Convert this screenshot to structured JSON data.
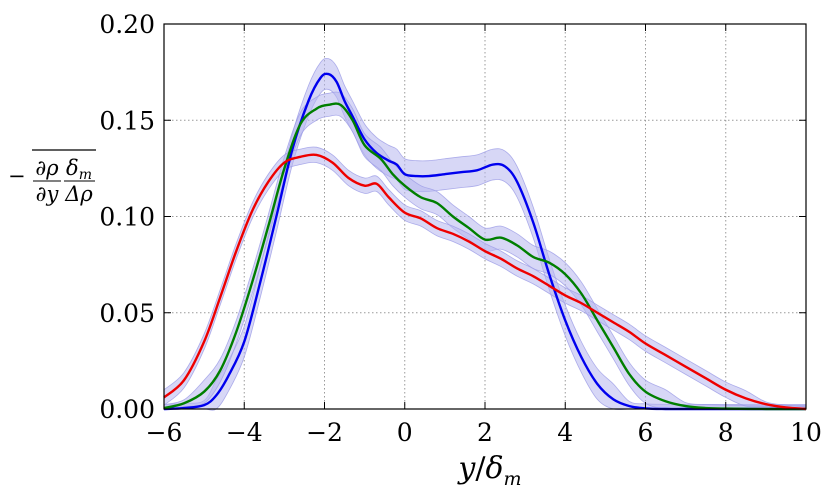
{
  "chart_data": {
    "type": "line",
    "title": "",
    "xlabel": "y/δ_m",
    "ylabel": "−∂ρ/∂y · δ_m/Δρ (overlined)",
    "xlabel_parts": {
      "var": "y",
      "slash": "/",
      "delta": "δ",
      "sub": "m"
    },
    "ylabel_parts": {
      "minus": "−",
      "frac1_num": "∂ρ",
      "frac1_den": "∂y",
      "frac2_num": "δ",
      "frac2_num_sub": "m",
      "frac2_den": "Δρ"
    },
    "xlim": [
      -6,
      10
    ],
    "ylim": [
      0.0,
      0.2
    ],
    "xticks": [
      -6,
      -4,
      -2,
      0,
      2,
      4,
      6,
      8,
      10
    ],
    "xtick_labels": [
      "−6",
      "−4",
      "−2",
      "0",
      "2",
      "4",
      "6",
      "8",
      "10"
    ],
    "yticks": [
      0.0,
      0.05,
      0.1,
      0.15,
      0.2
    ],
    "ytick_labels": [
      "0.00",
      "0.05",
      "0.10",
      "0.15",
      "0.20"
    ],
    "grid": true,
    "band_color": "#b6b6ee",
    "series": [
      {
        "name": "blue",
        "color": "#0000ee",
        "band": 0.008,
        "x": [
          -6,
          -5.5,
          -5,
          -4.7,
          -4.4,
          -4,
          -3.6,
          -3.2,
          -2.8,
          -2.4,
          -2.1,
          -1.9,
          -1.7,
          -1.5,
          -1.3,
          -1.0,
          -0.7,
          -0.4,
          -0.2,
          0,
          0.3,
          0.6,
          1.0,
          1.4,
          1.8,
          2.2,
          2.5,
          2.8,
          3.2,
          3.6,
          4.0,
          4.4,
          4.8,
          5.2,
          5.6,
          6.0,
          6.5,
          7,
          8,
          9,
          10
        ],
        "y": [
          0.0,
          0.0005,
          0.002,
          0.007,
          0.017,
          0.035,
          0.066,
          0.1,
          0.135,
          0.16,
          0.172,
          0.174,
          0.17,
          0.16,
          0.152,
          0.14,
          0.133,
          0.129,
          0.127,
          0.122,
          0.121,
          0.121,
          0.122,
          0.123,
          0.124,
          0.127,
          0.126,
          0.118,
          0.097,
          0.07,
          0.046,
          0.027,
          0.013,
          0.005,
          0.0015,
          0.0003,
          0.0,
          0.0,
          0.0,
          0.0,
          0.0
        ]
      },
      {
        "name": "green",
        "color": "#007f00",
        "band": 0.006,
        "x": [
          -6,
          -5.5,
          -5,
          -4.6,
          -4.2,
          -3.8,
          -3.4,
          -3.0,
          -2.6,
          -2.2,
          -1.9,
          -1.6,
          -1.3,
          -1.0,
          -0.6,
          -0.3,
          0,
          0.4,
          0.8,
          1.2,
          1.6,
          2.0,
          2.4,
          2.8,
          3.2,
          3.6,
          4.0,
          4.4,
          4.8,
          5.2,
          5.6,
          6.0,
          6.5,
          7,
          7.5,
          8,
          9,
          10
        ],
        "y": [
          0.0005,
          0.003,
          0.009,
          0.02,
          0.04,
          0.066,
          0.095,
          0.125,
          0.148,
          0.156,
          0.158,
          0.158,
          0.15,
          0.137,
          0.13,
          0.122,
          0.116,
          0.11,
          0.107,
          0.1,
          0.094,
          0.088,
          0.089,
          0.085,
          0.079,
          0.076,
          0.07,
          0.06,
          0.046,
          0.032,
          0.018,
          0.009,
          0.004,
          0.0015,
          0.0005,
          0.0002,
          0.0,
          0.0
        ]
      },
      {
        "name": "red",
        "color": "#ee0000",
        "band": 0.004,
        "x": [
          -6,
          -5.5,
          -5,
          -4.6,
          -4.2,
          -3.8,
          -3.4,
          -3.0,
          -2.6,
          -2.2,
          -1.8,
          -1.4,
          -1.0,
          -0.7,
          -0.4,
          0,
          0.4,
          0.8,
          1.2,
          1.6,
          2.0,
          2.4,
          2.8,
          3.2,
          3.6,
          4.0,
          4.4,
          4.8,
          5.2,
          5.6,
          6.0,
          6.5,
          7.0,
          7.5,
          8.0,
          8.5,
          9.0,
          9.5,
          10
        ],
        "y": [
          0.006,
          0.015,
          0.035,
          0.058,
          0.082,
          0.103,
          0.118,
          0.128,
          0.131,
          0.132,
          0.128,
          0.12,
          0.116,
          0.117,
          0.11,
          0.102,
          0.099,
          0.094,
          0.091,
          0.087,
          0.082,
          0.078,
          0.073,
          0.069,
          0.064,
          0.059,
          0.055,
          0.05,
          0.045,
          0.04,
          0.034,
          0.028,
          0.022,
          0.016,
          0.01,
          0.0055,
          0.0025,
          0.0008,
          0.0
        ]
      }
    ]
  }
}
